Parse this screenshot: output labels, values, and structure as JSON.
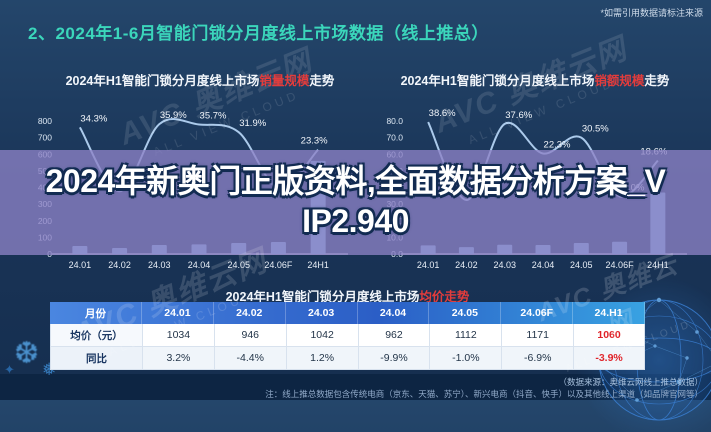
{
  "page": {
    "cite_note": "*如需引用数据请标注来源",
    "heading": "2、2024年1-6月智能门锁分月度线上市场数据（线上推总）"
  },
  "overlay": {
    "line1": "2024年新奥门正版资料,全面数据分析方案_V",
    "line2": "IP2.940"
  },
  "watermark": {
    "brand": "AVC 奥维云网",
    "sub": "ALL VIEW CLOUD"
  },
  "footer": {
    "source": "（数据来源：奥维云网线上推总数据）",
    "note": "注：线上推总数据包含传统电商（京东、天猫、苏宁）、新兴电商（抖音、快手）以及其他线上渠道（如品牌官网等）"
  },
  "chart_data": [
    {
      "type": "bar+line",
      "title_prefix": "2024年H1智能门锁分月度线上市场",
      "title_highlight": "销量规模",
      "title_suffix": "走势",
      "categories": [
        "24.01",
        "24.02",
        "24.03",
        "24.04",
        "24.05",
        "24.06F",
        "24H1"
      ],
      "yticks": [
        "800",
        "700",
        "600",
        "500",
        "400",
        "300",
        "200",
        "100",
        "0"
      ],
      "ylim": [
        0,
        800
      ],
      "grid": false,
      "legend_position": "none",
      "bars": {
        "name": "销量",
        "values": [
          48,
          36,
          54,
          58,
          66,
          72,
          560
        ]
      },
      "line": {
        "name": "同比增速",
        "values": [
          34.3,
          2.8,
          35.9,
          35.7,
          31.9,
          4.5,
          23.3
        ],
        "labels": [
          "34.3%",
          "2.8%",
          "35.9%",
          "35.7%",
          "31.9%",
          "",
          "23.3%"
        ]
      }
    },
    {
      "type": "bar+line",
      "title_prefix": "2024年H1智能门锁分月度线上市场",
      "title_highlight": "销额规模",
      "title_suffix": "走势",
      "categories": [
        "24.01",
        "24.02",
        "24.03",
        "24.04",
        "24.05",
        "24.06F",
        "24H1"
      ],
      "yticks": [
        "80.0",
        "70.0",
        "60.0",
        "50.0",
        "40.0",
        "30.0",
        "20.0",
        "10.0",
        "0.0"
      ],
      "ylim": [
        0,
        80
      ],
      "grid": false,
      "legend_position": "none",
      "bars": {
        "name": "销额",
        "values": [
          5.2,
          4.1,
          5.6,
          5.4,
          6.6,
          7.4,
          37
        ]
      },
      "line": {
        "name": "同比增速",
        "values": [
          38.6,
          -1.8,
          37.6,
          22.3,
          30.5,
          0.0,
          18.6
        ],
        "labels": [
          "38.6%",
          "-1.8%",
          "37.6%",
          "22.3%",
          "30.5%",
          "0.0%",
          "18.6%"
        ]
      }
    },
    {
      "type": "table",
      "title_prefix": "2024年H1智能门锁分月度线上市场",
      "title_highlight": "均价走势",
      "title_suffix": "",
      "columns": [
        "月份",
        "24.01",
        "24.02",
        "24.03",
        "24.04",
        "24.05",
        "24.06F",
        "24.H1"
      ],
      "rows": [
        {
          "label": "均价（元）",
          "values": [
            "1034",
            "946",
            "1042",
            "962",
            "1112",
            "1171",
            "1060"
          ]
        },
        {
          "label": "同比",
          "values": [
            "3.2%",
            "-4.4%",
            "1.2%",
            "-9.9%",
            "-1.0%",
            "-6.9%",
            "-3.9%"
          ]
        }
      ],
      "last_col_red": true
    }
  ]
}
